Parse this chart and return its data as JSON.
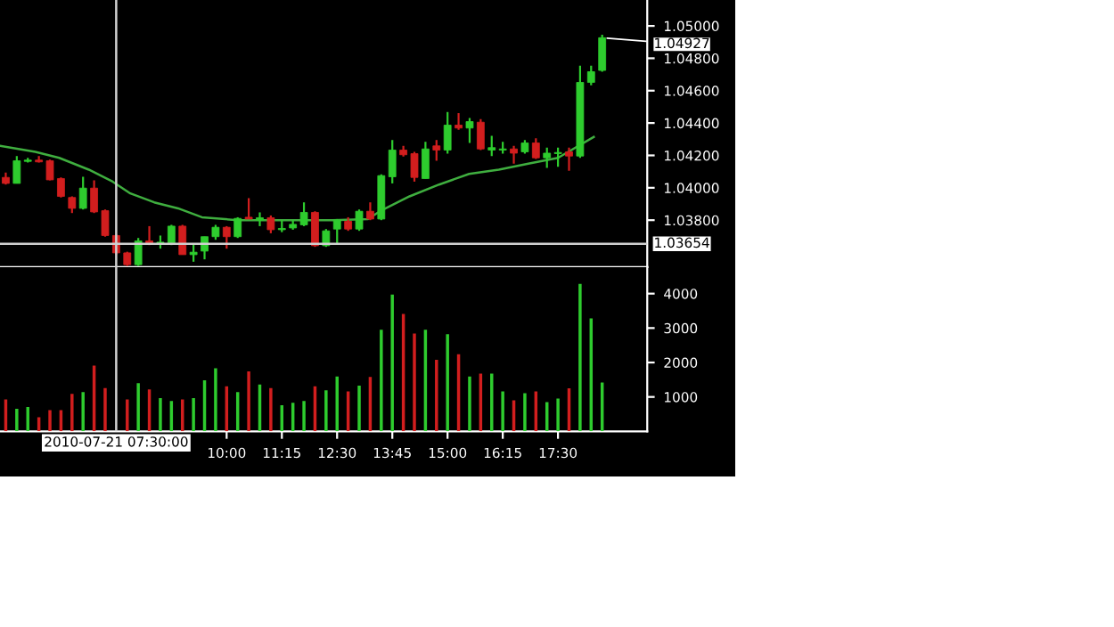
{
  "chart_data": [
    {
      "type": "candlestick",
      "x": [
        5.0,
        5.25,
        5.5,
        5.75,
        6.0,
        6.25,
        6.5,
        6.75,
        7.0,
        7.25,
        7.5,
        7.75,
        8.0,
        8.25,
        8.5,
        8.75,
        9.0,
        9.25,
        9.5,
        9.75,
        10.0,
        10.25,
        10.5,
        10.75,
        11.0,
        11.25,
        11.5,
        11.75,
        12.0,
        12.25,
        12.5,
        12.75,
        13.0,
        13.25,
        13.5,
        13.75,
        14.0,
        14.25,
        14.5,
        14.75,
        15.0,
        15.25,
        15.5,
        15.75,
        16.0,
        16.25,
        16.5,
        16.75,
        17.0,
        17.25,
        17.5,
        17.75,
        18.0,
        18.25,
        18.5
      ],
      "ohlc": [
        [
          1.04064,
          1.04094,
          1.0402,
          1.04027
        ],
        [
          1.04027,
          1.04196,
          1.04027,
          1.04167
        ],
        [
          1.04163,
          1.04185,
          1.04156,
          1.04171
        ],
        [
          1.04171,
          1.04196,
          1.04156,
          1.0416
        ],
        [
          1.04167,
          1.04174,
          1.04046,
          1.04049
        ],
        [
          1.04057,
          1.04064,
          1.0394,
          1.03947
        ],
        [
          1.0394,
          1.03947,
          1.03844,
          1.03873
        ],
        [
          1.03873,
          1.04068,
          1.03866,
          1.03998
        ],
        [
          1.03998,
          1.04046,
          1.03844,
          1.03851
        ],
        [
          1.03859,
          1.03866,
          1.03698,
          1.03705
        ],
        [
          1.03705,
          1.03712,
          1.03587,
          1.03598
        ],
        [
          1.03598,
          1.03605,
          1.03517,
          1.03525
        ],
        [
          1.03525,
          1.0369,
          1.03517,
          1.03672
        ],
        [
          1.03672,
          1.03763,
          1.03646,
          1.03653
        ],
        [
          1.03653,
          1.03705,
          1.03624,
          1.03664
        ],
        [
          1.0366,
          1.03771,
          1.03646,
          1.03763
        ],
        [
          1.03763,
          1.03771,
          1.03587,
          1.03587
        ],
        [
          1.03587,
          1.03653,
          1.03543,
          1.03602
        ],
        [
          1.03609,
          1.03698,
          1.03558,
          1.03698
        ],
        [
          1.03698,
          1.03771,
          1.03679,
          1.03756
        ],
        [
          1.03756,
          1.03763,
          1.03624,
          1.03698
        ],
        [
          1.03698,
          1.03818,
          1.0369,
          1.03811
        ],
        [
          1.03818,
          1.03936,
          1.03807,
          1.03807
        ],
        [
          1.038,
          1.03848,
          1.03763,
          1.03815
        ],
        [
          1.03815,
          1.03829,
          1.03719,
          1.03741
        ],
        [
          1.03741,
          1.038,
          1.03726,
          1.03749
        ],
        [
          1.03752,
          1.038,
          1.03741,
          1.03774
        ],
        [
          1.03771,
          1.0391,
          1.03763,
          1.03848
        ],
        [
          1.03848,
          1.03855,
          1.03635,
          1.03642
        ],
        [
          1.03642,
          1.03745,
          1.03635,
          1.03734
        ],
        [
          1.03745,
          1.03807,
          1.03653,
          1.038
        ],
        [
          1.03793,
          1.03818,
          1.03734,
          1.03745
        ],
        [
          1.03745,
          1.03866,
          1.03734,
          1.03855
        ],
        [
          1.03855,
          1.0391,
          1.038,
          1.03807
        ],
        [
          1.03807,
          1.04083,
          1.038,
          1.04075
        ],
        [
          1.04068,
          1.04295,
          1.04027,
          1.04233
        ],
        [
          1.04233,
          1.04259,
          1.04193,
          1.04204
        ],
        [
          1.04211,
          1.04222,
          1.04038,
          1.04064
        ],
        [
          1.04057,
          1.04284,
          1.04057,
          1.0424
        ],
        [
          1.04259,
          1.04295,
          1.04167,
          1.04233
        ],
        [
          1.04233,
          1.04468,
          1.04211,
          1.04387
        ],
        [
          1.04387,
          1.04461,
          1.04358,
          1.04369
        ],
        [
          1.04369,
          1.04431,
          1.04277,
          1.04409
        ],
        [
          1.04405,
          1.04424,
          1.04233,
          1.0424
        ],
        [
          1.04233,
          1.04321,
          1.04196,
          1.04248
        ],
        [
          1.04233,
          1.04284,
          1.04211,
          1.0424
        ],
        [
          1.0424,
          1.04259,
          1.04149,
          1.04214
        ],
        [
          1.04222,
          1.04295,
          1.04211,
          1.04277
        ],
        [
          1.04277,
          1.04306,
          1.04178,
          1.04185
        ],
        [
          1.04185,
          1.04248,
          1.04123,
          1.04214
        ],
        [
          1.04211,
          1.04248,
          1.0413,
          1.04218
        ],
        [
          1.04222,
          1.04248,
          1.04105,
          1.04196
        ],
        [
          1.04196,
          1.04754,
          1.04185,
          1.04651
        ],
        [
          1.04651,
          1.04754,
          1.04633,
          1.04717
        ],
        [
          1.04725,
          1.04945,
          1.04717,
          1.04927
        ]
      ],
      "colors": [
        "#d21e1e",
        "#2ecc2e",
        "#2ecc2e",
        "#d21e1e",
        "#d21e1e",
        "#d21e1e",
        "#d21e1e",
        "#2ecc2e",
        "#d21e1e",
        "#d21e1e",
        "#d21e1e",
        "#d21e1e",
        "#2ecc2e",
        "#d21e1e",
        "#2ecc2e",
        "#2ecc2e",
        "#d21e1e",
        "#2ecc2e",
        "#2ecc2e",
        "#2ecc2e",
        "#d21e1e",
        "#2ecc2e",
        "#d21e1e",
        "#2ecc2e",
        "#d21e1e",
        "#2ecc2e",
        "#2ecc2e",
        "#2ecc2e",
        "#d21e1e",
        "#2ecc2e",
        "#2ecc2e",
        "#d21e1e",
        "#2ecc2e",
        "#d21e1e",
        "#2ecc2e",
        "#2ecc2e",
        "#d21e1e",
        "#d21e1e",
        "#2ecc2e",
        "#d21e1e",
        "#2ecc2e",
        "#d21e1e",
        "#2ecc2e",
        "#d21e1e",
        "#2ecc2e",
        "#2ecc2e",
        "#d21e1e",
        "#2ecc2e",
        "#d21e1e",
        "#2ecc2e",
        "#2ecc2e",
        "#d21e1e",
        "#2ecc2e",
        "#2ecc2e",
        "#2ecc2e"
      ],
      "series": [
        {
          "type": "line",
          "color": "#3fae3f",
          "x": [
            4.87,
            5.67,
            6.21,
            6.88,
            7.42,
            7.82,
            8.36,
            8.9,
            9.44,
            10.24,
            12.4,
            13.2,
            13.47,
            14.14,
            14.81,
            15.49,
            16.16,
            16.83,
            17.5,
            18.31
          ],
          "values": [
            1.04259,
            1.04222,
            1.04185,
            1.04112,
            1.04038,
            1.03965,
            1.0391,
            1.03873,
            1.03818,
            1.038,
            1.038,
            1.03807,
            1.03855,
            1.03947,
            1.0402,
            1.04086,
            1.04112,
            1.04149,
            1.04185,
            1.04314
          ]
        }
      ],
      "xlim": [
        4.87,
        19.52
      ],
      "ylim": [
        1.0351,
        1.0516
      ],
      "yticks": [
        {
          "value": 1.038,
          "label": "1.03800"
        },
        {
          "value": 1.04,
          "label": "1.04000"
        },
        {
          "value": 1.042,
          "label": "1.04200"
        },
        {
          "value": 1.044,
          "label": "1.04400"
        },
        {
          "value": 1.046,
          "label": "1.04600"
        },
        {
          "value": 1.048,
          "label": "1.04800"
        },
        {
          "value": 1.05,
          "label": "1.05000"
        }
      ],
      "tick_labels": "y",
      "ref_lines": [
        {
          "axis": "y",
          "value": 1.03654,
          "label": "1.03654",
          "color": "#d0d0d0"
        },
        {
          "axis": "x",
          "value": 7.5,
          "label": null,
          "color": "#d0d0d0"
        }
      ],
      "annotations": [
        {
          "text": "1.04927",
          "x": 18.5,
          "y": 1.04927
        }
      ]
    },
    {
      "type": "bar",
      "x": [
        5.0,
        5.25,
        5.5,
        5.75,
        6.0,
        6.25,
        6.5,
        6.75,
        7.0,
        7.25,
        7.5,
        7.75,
        8.0,
        8.25,
        8.5,
        8.75,
        9.0,
        9.25,
        9.5,
        9.75,
        10.0,
        10.25,
        10.5,
        10.75,
        11.0,
        11.25,
        11.5,
        11.75,
        12.0,
        12.25,
        12.5,
        12.75,
        13.0,
        13.25,
        13.5,
        13.75,
        14.0,
        14.25,
        14.5,
        14.75,
        15.0,
        15.25,
        15.5,
        15.75,
        16.0,
        16.25,
        16.5,
        16.75,
        17.0,
        17.25,
        17.5,
        17.75,
        18.0,
        18.25,
        18.5
      ],
      "values": [
        930,
        655,
        710,
        410,
        620,
        620,
        1090,
        1140,
        1910,
        1260,
        null,
        930,
        1400,
        1220,
        965,
        880,
        930,
        965,
        1480,
        1830,
        1310,
        1140,
        1740,
        1360,
        1260,
        760,
        830,
        880,
        1310,
        1190,
        1590,
        1160,
        1330,
        1580,
        2950,
        3970,
        3410,
        2840,
        2950,
        2080,
        2820,
        2240,
        1590,
        1680,
        1680,
        1160,
        900,
        1110,
        1160,
        850,
        950,
        1250,
        4280,
        3280,
        1420
      ],
      "colors": [
        "#d21e1e",
        "#2ecc2e",
        "#2ecc2e",
        "#d21e1e",
        "#d21e1e",
        "#d21e1e",
        "#d21e1e",
        "#2ecc2e",
        "#d21e1e",
        "#d21e1e",
        "#d21e1e",
        "#d21e1e",
        "#2ecc2e",
        "#d21e1e",
        "#2ecc2e",
        "#2ecc2e",
        "#d21e1e",
        "#2ecc2e",
        "#2ecc2e",
        "#2ecc2e",
        "#d21e1e",
        "#2ecc2e",
        "#d21e1e",
        "#2ecc2e",
        "#d21e1e",
        "#2ecc2e",
        "#2ecc2e",
        "#2ecc2e",
        "#d21e1e",
        "#2ecc2e",
        "#2ecc2e",
        "#d21e1e",
        "#2ecc2e",
        "#d21e1e",
        "#2ecc2e",
        "#2ecc2e",
        "#d21e1e",
        "#d21e1e",
        "#2ecc2e",
        "#d21e1e",
        "#2ecc2e",
        "#d21e1e",
        "#2ecc2e",
        "#d21e1e",
        "#2ecc2e",
        "#2ecc2e",
        "#d21e1e",
        "#2ecc2e",
        "#d21e1e",
        "#2ecc2e",
        "#2ecc2e",
        "#d21e1e",
        "#2ecc2e",
        "#2ecc2e",
        "#2ecc2e"
      ],
      "xlim": [
        4.87,
        19.52
      ],
      "ylim": [
        0,
        4770
      ],
      "yticks": [
        1000,
        2000,
        3000,
        4000
      ],
      "xticks": [
        {
          "value": 10.0,
          "label": "10:00"
        },
        {
          "value": 11.25,
          "label": "11:15"
        },
        {
          "value": 12.5,
          "label": "12:30"
        },
        {
          "value": 13.75,
          "label": "13:45"
        },
        {
          "value": 15.0,
          "label": "15:00"
        },
        {
          "value": 16.25,
          "label": "16:15"
        },
        {
          "value": 17.5,
          "label": "17:30"
        }
      ],
      "ref_lines": [
        {
          "axis": "x",
          "value": 7.5,
          "label": "2010-07-21 07:30:00",
          "color": "#d0d0d0"
        }
      ]
    }
  ]
}
